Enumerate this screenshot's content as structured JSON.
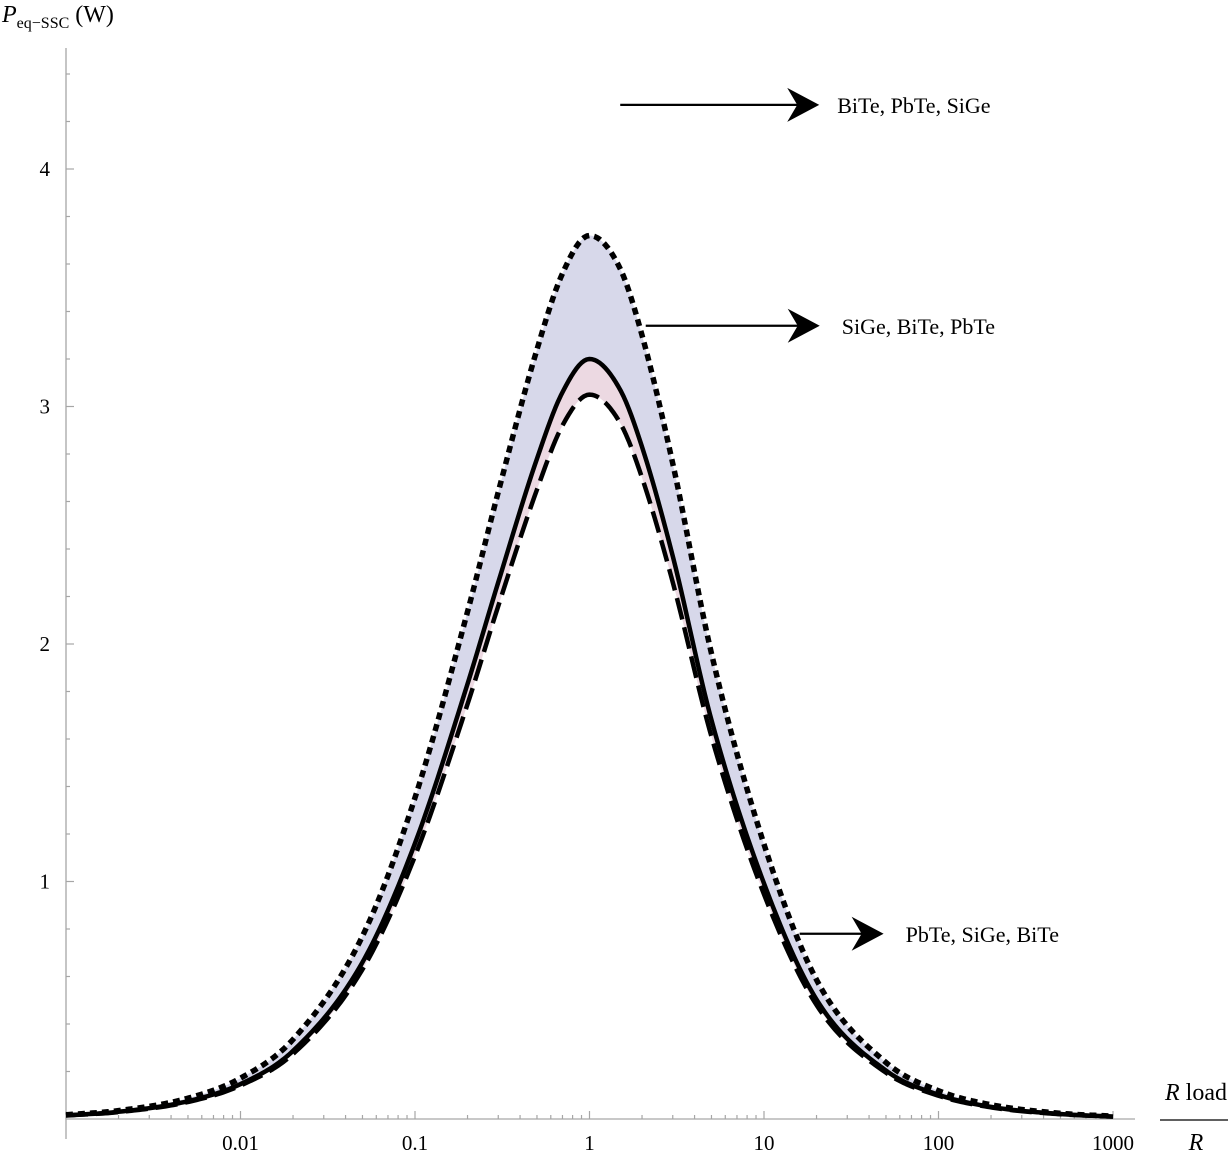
{
  "chart_data": {
    "type": "line",
    "title": "",
    "y_axis": {
      "label_main": "P",
      "label_sub": "eq−SSC",
      "label_unit": " (W)",
      "ticks": [
        {
          "value": 1,
          "label": "1"
        },
        {
          "value": 2,
          "label": "2"
        },
        {
          "value": 3,
          "label": "3"
        },
        {
          "value": 4,
          "label": "4"
        }
      ],
      "range": [
        0,
        4.6
      ]
    },
    "x_axis": {
      "scale": "log",
      "label_numerator_italic": "R",
      "label_numerator_rest": " load",
      "label_denominator": "R",
      "ticks": [
        {
          "value": 0.01,
          "label": "0.01"
        },
        {
          "value": 0.1,
          "label": "0.1"
        },
        {
          "value": 1,
          "label": "1"
        },
        {
          "value": 10,
          "label": "10"
        },
        {
          "value": 100,
          "label": "100"
        },
        {
          "value": 1000,
          "label": "1000"
        }
      ],
      "range": [
        0.001,
        1000
      ]
    },
    "grid": false,
    "x": [
      0.001,
      0.002,
      0.005,
      0.01,
      0.02,
      0.05,
      0.1,
      0.2,
      0.3,
      0.5,
      0.7,
      1,
      1.5,
      2,
      3,
      5,
      10,
      20,
      50,
      100,
      200,
      500,
      1000
    ],
    "series": [
      {
        "line_style": "dotted",
        "values": [
          0.0177,
          0.0353,
          0.0875,
          0.172,
          0.335,
          0.77,
          1.353,
          2.136,
          2.64,
          3.24,
          3.56,
          3.72,
          3.58,
          3.3,
          2.76,
          1.96,
          1.157,
          0.586,
          0.238,
          0.119,
          0.06,
          0.024,
          0.012
        ]
      },
      {
        "line_style": "solid",
        "values": [
          0.0152,
          0.0303,
          0.075,
          0.147,
          0.287,
          0.66,
          1.161,
          1.832,
          2.26,
          2.78,
          3.06,
          3.2,
          3.07,
          2.83,
          2.37,
          1.68,
          0.992,
          0.503,
          0.204,
          0.102,
          0.051,
          0.021,
          0.01
        ]
      },
      {
        "line_style": "dashed",
        "values": [
          0.0145,
          0.029,
          0.0716,
          0.141,
          0.274,
          0.63,
          1.107,
          1.747,
          2.16,
          2.65,
          2.92,
          3.05,
          2.93,
          2.7,
          2.26,
          1.61,
          0.946,
          0.48,
          0.195,
          0.098,
          0.049,
          0.02,
          0.01
        ]
      }
    ],
    "band_colors": {
      "upper_fill": "#d7d8ea",
      "lower_fill": "#ecd9e2"
    },
    "annotations": [
      {
        "text": "BiTe,  PbTe,  SiGe",
        "target_x": 1.5,
        "target_y": 4.27
      },
      {
        "text": "SiGe,  BiTe,  PbTe",
        "target_x": 2.1,
        "target_y": 3.34
      },
      {
        "text": "PbTe,  SiGe,  BiTe",
        "target_x": 16,
        "target_y": 0.78
      }
    ]
  }
}
